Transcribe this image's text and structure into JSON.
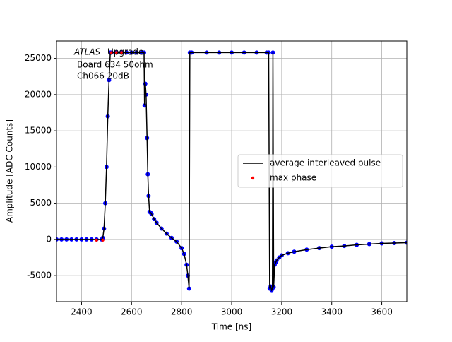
{
  "chart_data": {
    "type": "line",
    "xlabel": "Time [ns]",
    "ylabel": "Amplitude [ADC Counts]",
    "annotation": {
      "italic": "ATLAS",
      "lines": [
        "Upgrade",
        "Board 634 50ohm",
        "Ch066 20dB"
      ]
    },
    "xlim": [
      2300,
      3700
    ],
    "xticks": [
      2400,
      2600,
      2800,
      3000,
      3200,
      3400,
      3600
    ],
    "ylim": [
      -8600,
      27400
    ],
    "yticks": [
      -5000,
      0,
      5000,
      10000,
      15000,
      20000,
      25000
    ],
    "grid": true,
    "legend": "right",
    "series": [
      {
        "name": "average interleaved pulse",
        "color": "#000000",
        "marker_color": "#0000ff",
        "style": "line",
        "x": [
          2300,
          2320,
          2340,
          2360,
          2380,
          2400,
          2420,
          2440,
          2460,
          2480,
          2485,
          2490,
          2495,
          2500,
          2505,
          2510,
          2515,
          2520,
          2540,
          2560,
          2580,
          2600,
          2620,
          2640,
          2650,
          2652,
          2655,
          2658,
          2662,
          2665,
          2668,
          2672,
          2676,
          2680,
          2690,
          2700,
          2720,
          2740,
          2760,
          2780,
          2800,
          2810,
          2820,
          2825,
          2830,
          2833,
          2840,
          2900,
          2950,
          3000,
          3050,
          3100,
          3140,
          3148,
          3152,
          3156,
          3160,
          3163,
          3165,
          3168,
          3172,
          3176,
          3180,
          3190,
          3200,
          3225,
          3250,
          3300,
          3350,
          3400,
          3450,
          3500,
          3550,
          3600,
          3650,
          3700
        ],
        "values": [
          0,
          0,
          0,
          0,
          0,
          0,
          0,
          0,
          0,
          0,
          200,
          1500,
          5000,
          10000,
          17000,
          22000,
          25800,
          25800,
          25800,
          25800,
          25800,
          25800,
          25800,
          25800,
          25800,
          18500,
          21500,
          20000,
          14000,
          9000,
          6000,
          3800,
          3700,
          3500,
          2800,
          2300,
          1500,
          800,
          200,
          -300,
          -1200,
          -2000,
          -3500,
          -5000,
          -6800,
          25800,
          25800,
          25800,
          25800,
          25800,
          25800,
          25800,
          25800,
          25800,
          -6800,
          -6500,
          -7000,
          -6800,
          25800,
          -6600,
          -3500,
          -3200,
          -2900,
          -2500,
          -2200,
          -1900,
          -1700,
          -1400,
          -1200,
          -1000,
          -900,
          -750,
          -650,
          -550,
          -500,
          -450
        ]
      },
      {
        "name": "max phase",
        "color": "#ff0000",
        "style": "points",
        "x": [
          2460,
          2485,
          2520,
          2540,
          2560
        ],
        "values": [
          -100,
          -100,
          25800,
          25800,
          25800
        ]
      }
    ]
  }
}
